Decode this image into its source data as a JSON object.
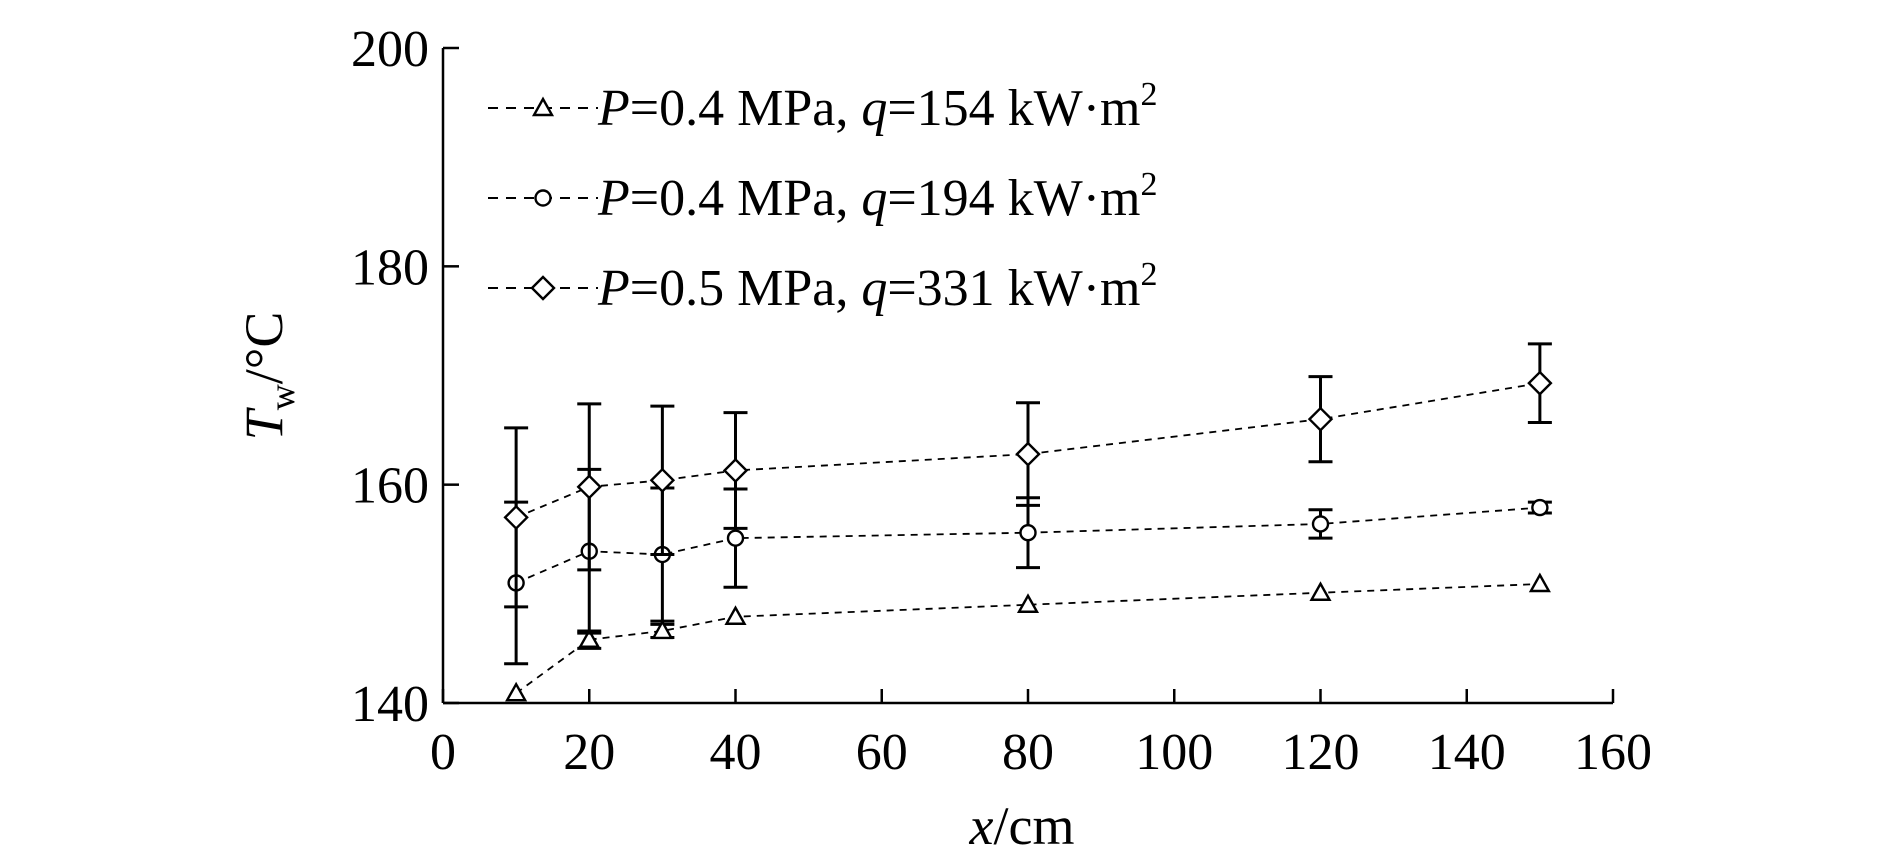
{
  "chart_data": {
    "type": "line",
    "title": "",
    "xlabel": {
      "var": "x",
      "unit": "/cm"
    },
    "ylabel": {
      "var": "T",
      "sub": "w",
      "unit": "/°C"
    },
    "xlim": [
      0,
      160
    ],
    "ylim": [
      140,
      200
    ],
    "xticks": [
      0,
      20,
      40,
      60,
      80,
      100,
      120,
      140,
      160
    ],
    "yticks": [
      140,
      160,
      180,
      200
    ],
    "grid": false,
    "legend_position": "top-left",
    "x": [
      10,
      20,
      30,
      40,
      80,
      120,
      150
    ],
    "series": [
      {
        "name": "P=0.4 MPa, q=154 kW·m2",
        "marker": "triangle",
        "legend": {
          "p_sym": "P",
          "p_val": "=0.4 MPa, ",
          "q_sym": "q",
          "q_val": "=154 kW·m",
          "sup": "2"
        },
        "values": [
          140.9,
          145.8,
          146.6,
          147.9,
          149.0,
          150.1,
          150.9
        ],
        "errors": [
          0,
          0.8,
          0.6,
          0,
          0,
          0,
          0
        ]
      },
      {
        "name": "P=0.4 MPa, q=194 kW·m2",
        "marker": "circle",
        "legend": {
          "p_sym": "P",
          "p_val": "=0.4 MPa, ",
          "q_sym": "q",
          "q_val": "=194 kW·m",
          "sup": "2"
        },
        "values": [
          151.0,
          153.9,
          153.6,
          155.1,
          155.6,
          156.4,
          157.9
        ],
        "errors": [
          7.4,
          7.5,
          6.1,
          4.5,
          3.2,
          1.3,
          0.5
        ]
      },
      {
        "name": "P=0.5 MPa, q=331 kW·m2",
        "marker": "diamond",
        "legend": {
          "p_sym": "P",
          "p_val": "=0.5 MPa, ",
          "q_sym": "q",
          "q_val": "=331 kW·m",
          "sup": "2"
        },
        "values": [
          157.0,
          159.8,
          160.4,
          161.3,
          162.8,
          166.0,
          169.3
        ],
        "errors": [
          8.2,
          7.6,
          6.8,
          5.3,
          4.7,
          3.9,
          3.6
        ]
      }
    ]
  }
}
